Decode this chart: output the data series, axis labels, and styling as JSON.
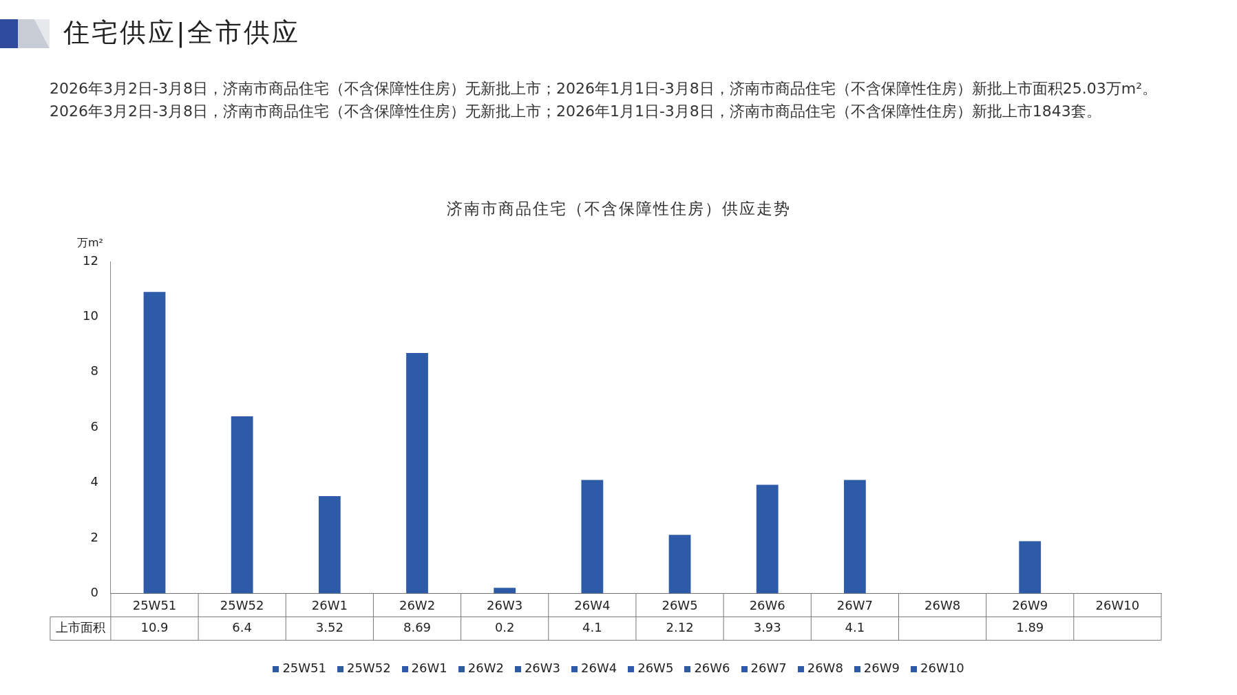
{
  "chart_data": {
    "type": "bar",
    "title": "济南市商品住宅（不含保障性住房）供应走势",
    "annotations": [
      "住宅供应|全市供应",
      "2026年3月2日-3月8日，济南市商品住宅（不含保障性住房）无新批上市；2026年1月1日-3月8日，济南市商品住宅（不含保障性住房）新批上市面积25.03万m²。2026年3月2日-3月8日，济南市商品住宅（不含保障性住房）无新批上市；2026年1月1日-3月8日，济南市商品住宅（不含保障性住房）新批上市1843套。"
    ],
    "ylabel": "万m²",
    "categories": [
      "25W51",
      "25W52",
      "26W1",
      "26W2",
      "26W3",
      "26W4",
      "26W5",
      "26W6",
      "26W7",
      "26W8",
      "26W9",
      "26W10"
    ],
    "series": [
      {
        "name": "上市面积",
        "color": "#2e5ba8",
        "values": [
          10.9,
          6.4,
          3.52,
          8.69,
          0.2,
          4.1,
          2.12,
          3.93,
          4.1,
          null,
          1.89,
          null
        ]
      }
    ],
    "ylim": [
      0,
      12
    ],
    "yticks": [
      0,
      2,
      4,
      6,
      8,
      10,
      12
    ],
    "grid": false,
    "legend": "bottom",
    "data_labels": true
  }
}
